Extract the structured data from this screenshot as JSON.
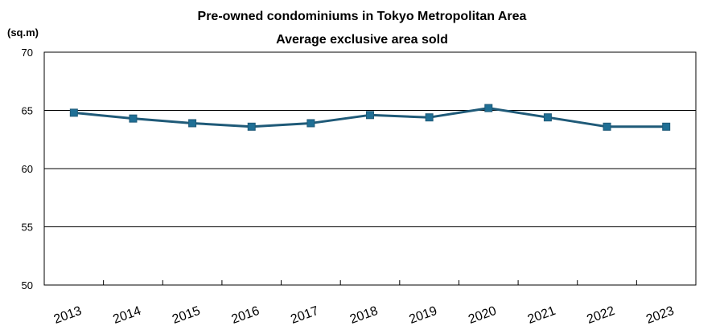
{
  "chart_data": {
    "type": "line",
    "title": "Pre-owned condominiums in Tokyo Metropolitan Area",
    "subtitle": "Average exclusive area sold",
    "ylabel": "(sq.m)",
    "xlabel": "",
    "ylim": [
      50,
      70
    ],
    "yticks": [
      50,
      55,
      60,
      65,
      70
    ],
    "grid": "horizontal",
    "categories": [
      "2013",
      "2014",
      "2015",
      "2016",
      "2017",
      "2018",
      "2019",
      "2020",
      "2021",
      "2022",
      "2023"
    ],
    "series": [
      {
        "values": [
          64.8,
          64.3,
          63.9,
          63.6,
          63.9,
          64.6,
          64.4,
          65.2,
          64.4,
          63.6,
          63.6
        ],
        "color": "#1f5a78",
        "marker_color": "#1f6f95"
      }
    ]
  }
}
